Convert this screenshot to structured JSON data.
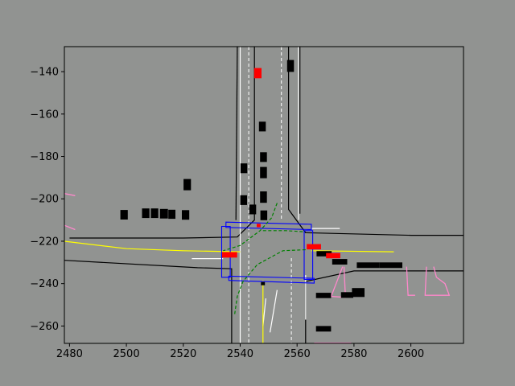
{
  "chart_data": {
    "type": "scatter",
    "title": "",
    "xlabel": "",
    "ylabel": "",
    "xlim": [
      2478.2,
      2618.5
    ],
    "ylim": [
      -268.2,
      -128.2
    ],
    "xticks": [
      2480,
      2500,
      2520,
      2540,
      2560,
      2580,
      2600
    ],
    "yticks": [
      -140,
      -160,
      -180,
      -200,
      -220,
      -240,
      -260
    ],
    "xtick_labels": [
      "2480",
      "2500",
      "2520",
      "2540",
      "2560",
      "2580",
      "2600"
    ],
    "ytick_labels": [
      "−140",
      "−160",
      "−180",
      "−200",
      "−220",
      "−240",
      "−260"
    ],
    "grid": false,
    "legend": "none",
    "colors": {
      "background": "#919391",
      "axes_face": "#919391",
      "road_edge": "#000000",
      "lane_white": "#ffffff",
      "centerline": "#ffff00",
      "crosswalk": "#0000ff",
      "route": "#008000",
      "vehicle": "#000000",
      "ego_agents": "#ff0000",
      "pedestrian_zone": "#ff88cc"
    },
    "layers": {
      "road_edges": [
        [
          [
            2545,
            -128.2
          ],
          [
            2545,
            -210
          ],
          [
            2539,
            -218
          ],
          [
            2520,
            -218.5
          ],
          [
            2480,
            -218.5
          ]
        ],
        [
          [
            2539,
            -128.2
          ],
          [
            2538.5,
            -210
          ]
        ],
        [
          [
            2557,
            -128.2
          ],
          [
            2557,
            -205
          ],
          [
            2563,
            -216
          ],
          [
            2600,
            -217.2
          ],
          [
            2618.5,
            -217.2
          ]
        ],
        [
          [
            2561,
            -128.2
          ],
          [
            2561,
            -207
          ]
        ],
        [
          [
            2478.2,
            -229
          ],
          [
            2525,
            -232.5
          ],
          [
            2537,
            -233
          ],
          [
            2537,
            -268.2
          ]
        ],
        [
          [
            2563,
            -268.2
          ],
          [
            2563,
            -239
          ],
          [
            2580,
            -234
          ],
          [
            2618.5,
            -234
          ]
        ]
      ],
      "lane_lines_white": [
        [
          [
            2540,
            -128.2
          ],
          [
            2540,
            -268.2
          ]
        ],
        [
          [
            2560.5,
            -128.2
          ],
          [
            2560.5,
            -210
          ]
        ],
        [
          [
            2523,
            -228.2
          ],
          [
            2534,
            -228.2
          ]
        ],
        [
          [
            2563,
            -236
          ],
          [
            2563,
            -257
          ]
        ],
        [
          [
            2553,
            -243
          ],
          [
            2550.5,
            -263
          ]
        ],
        [
          [
            2549,
            -247
          ],
          [
            2548,
            -260
          ]
        ],
        [
          [
            2565,
            -214
          ],
          [
            2575,
            -214
          ]
        ]
      ],
      "lane_lines_dashed": [
        [
          [
            2543,
            -128.2
          ],
          [
            2543,
            -268.2
          ]
        ],
        [
          [
            2554.5,
            -128.2
          ],
          [
            2554.5,
            -210
          ]
        ],
        [
          [
            2558,
            -228
          ],
          [
            2558,
            -268.2
          ]
        ]
      ],
      "centerlines_yellow": [
        [
          [
            2478.2,
            -220
          ],
          [
            2500,
            -223.5
          ],
          [
            2520,
            -224.5
          ],
          [
            2540,
            -225
          ]
        ],
        [
          [
            2565,
            -224.5
          ],
          [
            2594,
            -225
          ]
        ],
        [
          [
            2548,
            -238.5
          ],
          [
            2548,
            -268.2
          ]
        ]
      ],
      "route_dashed_green": [
        [
          [
            2553,
            -202
          ],
          [
            2551,
            -209
          ],
          [
            2547,
            -215
          ],
          [
            2540,
            -222
          ],
          [
            2534,
            -224.5
          ]
        ],
        [
          [
            2563,
            -224
          ],
          [
            2555,
            -224.5
          ],
          [
            2546,
            -231
          ],
          [
            2541,
            -239
          ],
          [
            2539,
            -246
          ],
          [
            2538,
            -255
          ]
        ],
        [
          [
            2548,
            -215
          ],
          [
            2556,
            -215
          ],
          [
            2562,
            -215.5
          ]
        ]
      ],
      "crosswalks": [
        [
          [
            2535,
            -211
          ],
          [
            2565,
            -212
          ],
          [
            2565,
            -214.5
          ],
          [
            2535,
            -213.5
          ]
        ],
        [
          [
            2536,
            -236.5
          ],
          [
            2566,
            -237.5
          ],
          [
            2566,
            -239.8
          ],
          [
            2536,
            -238.5
          ]
        ],
        [
          [
            2533.5,
            -213
          ],
          [
            2536.5,
            -213
          ],
          [
            2536.5,
            -237
          ],
          [
            2533.5,
            -237
          ]
        ],
        [
          [
            2562.5,
            -215
          ],
          [
            2565.5,
            -215
          ],
          [
            2565.5,
            -238
          ],
          [
            2562.5,
            -238
          ]
        ]
      ],
      "pedestrian_zones": [
        [
          [
            2478.2,
            -197.5
          ],
          [
            2482,
            -198.5
          ]
        ],
        [
          [
            2478.2,
            -212.5
          ],
          [
            2482,
            -214.5
          ]
        ],
        [
          [
            2576,
            -232
          ],
          [
            2572,
            -246
          ],
          [
            2577,
            -246.5
          ],
          [
            2576.5,
            -232
          ]
        ],
        [
          [
            2598.5,
            -232
          ],
          [
            2599,
            -245.5
          ],
          [
            2601.5,
            -245.5
          ]
        ],
        [
          [
            2605.5,
            -232
          ],
          [
            2605,
            -245.5
          ],
          [
            2613.5,
            -245.5
          ],
          [
            2612,
            -240
          ],
          [
            2609,
            -237
          ],
          [
            2608,
            -232
          ]
        ],
        [
          [
            2566,
            -268
          ],
          [
            2579,
            -268
          ]
        ]
      ],
      "vehicles": [
        [
          2499.2,
          -207.5,
          2.6,
          4.5
        ],
        [
          2506.8,
          -206.8,
          2.6,
          4.5
        ],
        [
          2509.9,
          -206.8,
          2.6,
          4.5
        ],
        [
          2513.2,
          -207.0,
          2.8,
          4.5
        ],
        [
          2516.0,
          -207.3,
          2.5,
          4.3
        ],
        [
          2520.8,
          -207.6,
          2.6,
          4.5
        ],
        [
          2521.4,
          -193.3,
          2.6,
          5.3
        ],
        [
          2541.3,
          -185.6,
          2.4,
          4.6
        ],
        [
          2541.2,
          -200.6,
          2.4,
          4.6
        ],
        [
          2544.4,
          -205.0,
          2.4,
          4.6
        ],
        [
          2548.3,
          -207.8,
          2.4,
          4.6
        ],
        [
          2548.2,
          -199.2,
          2.4,
          5.4
        ],
        [
          2548.2,
          -187.6,
          2.4,
          5.3
        ],
        [
          2548.2,
          -180.3,
          2.4,
          4.6
        ],
        [
          2547.8,
          -165.9,
          2.4,
          4.6
        ],
        [
          2557.7,
          -137.3,
          2.4,
          5.6
        ],
        [
          2548.0,
          -240.0,
          1.4,
          1.5
        ],
        [
          2569.5,
          -225.9,
          5.3,
          2.5
        ],
        [
          2575.0,
          -229.7,
          5.3,
          2.6
        ],
        [
          2569.3,
          -245.6,
          5.3,
          2.5
        ],
        [
          2577.6,
          -245.4,
          4.3,
          2.7
        ],
        [
          2581.5,
          -244.2,
          4.4,
          4.2
        ],
        [
          2585.0,
          -231.3,
          8.0,
          2.6
        ],
        [
          2593.0,
          -231.3,
          8.0,
          2.6
        ],
        [
          2569.3,
          -261.3,
          5.3,
          2.6
        ]
      ],
      "ego_agents": [
        [
          2546.2,
          -140.7,
          2.6,
          4.8
        ],
        [
          2536.3,
          -226.4,
          5.3,
          2.6
        ],
        [
          2565.9,
          -222.6,
          5.0,
          2.5
        ],
        [
          2572.7,
          -226.8,
          5.0,
          2.5
        ],
        [
          2546.5,
          -212.6,
          1.4,
          1.6
        ]
      ]
    }
  }
}
